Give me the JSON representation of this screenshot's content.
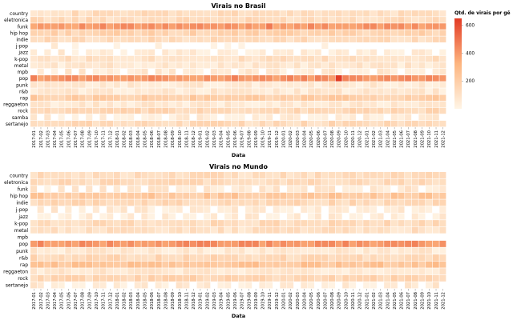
{
  "chart_data": [
    {
      "type": "heatmap",
      "title": "Virais no Brasil",
      "xlabel": "Data",
      "ylabel": "",
      "rows": [
        "country",
        "eletronica",
        "funk",
        "hip hop",
        "indie",
        "j-pop",
        "jazz",
        "k-pop",
        "metal",
        "mpb",
        "pop",
        "punk",
        "r&b",
        "rap",
        "reggaeton",
        "rock",
        "samba",
        "sertanejo"
      ],
      "base_levels": [
        0.18,
        0.2,
        0.62,
        0.26,
        0.2,
        0.04,
        0.06,
        0.16,
        0.1,
        0.08,
        0.64,
        0.08,
        0.09,
        0.3,
        0.09,
        0.22,
        0.06,
        0.2
      ],
      "peaks": [
        {
          "row": "pop",
          "col": "2020-09",
          "level": 1.0
        },
        {
          "row": "funk",
          "col": "2019-11",
          "level": 0.74
        }
      ],
      "empty_cells": [
        {
          "row": "j-pop",
          "cols": [
            "2017-01",
            "2017-02",
            "2017-03",
            "2017-05",
            "2017-06",
            "2017-08",
            "2017-09",
            "2017-10",
            "2017-11",
            "2017-12",
            "2018-02",
            "2018-03",
            "2018-04",
            "2018-05",
            "2018-06",
            "2018-08",
            "2018-09",
            "2018-10",
            "2018-11",
            "2018-12",
            "2019-01",
            "2019-02",
            "2019-04",
            "2019-06",
            "2019-08",
            "2019-09",
            "2019-10",
            "2019-11",
            "2019-12",
            "2020-01",
            "2020-02",
            "2020-03",
            "2020-04",
            "2020-05",
            "2020-06",
            "2020-08",
            "2020-09",
            "2020-10",
            "2020-11",
            "2020-12",
            "2021-01",
            "2021-02",
            "2021-03",
            "2021-04",
            "2021-05",
            "2021-06",
            "2021-07",
            "2021-08",
            "2021-09",
            "2021-10",
            "2021-11",
            "2021-12"
          ]
        },
        {
          "row": "jazz",
          "cols": [
            "2017-02",
            "2017-04",
            "2017-06",
            "2017-08",
            "2018-01",
            "2018-03",
            "2018-07",
            "2019-03",
            "2019-07",
            "2019-11",
            "2020-03",
            "2020-07",
            "2020-11",
            "2021-03",
            "2021-07",
            "2021-11"
          ]
        },
        {
          "row": "mpb",
          "cols": [
            "2017-01",
            "2017-03",
            "2017-05",
            "2017-07",
            "2017-09",
            "2018-02",
            "2018-06",
            "2018-10",
            "2019-02",
            "2019-06",
            "2019-10",
            "2020-02",
            "2020-06",
            "2020-10",
            "2021-02",
            "2021-06",
            "2021-10"
          ]
        },
        {
          "row": "samba",
          "cols": [
            "2017-02",
            "2017-04",
            "2017-06",
            "2017-08",
            "2017-10",
            "2017-12",
            "2018-04",
            "2018-08",
            "2018-12",
            "2019-04",
            "2019-08",
            "2019-12",
            "2020-04",
            "2020-08",
            "2020-12",
            "2021-04",
            "2021-08",
            "2021-12"
          ]
        }
      ],
      "color_scale": {
        "min": 0,
        "max": 650,
        "low_color": "#fff5e6",
        "mid_color": "#fdb57f",
        "high_color": "#e23b24"
      }
    },
    {
      "type": "heatmap",
      "title": "Virais no Mundo",
      "xlabel": "Data",
      "ylabel": "",
      "rows": [
        "country",
        "eletronica",
        "funk",
        "hip hop",
        "indie",
        "j-pop",
        "jazz",
        "k-pop",
        "metal",
        "mpb",
        "pop",
        "punk",
        "r&b",
        "rap",
        "reggaeton",
        "rock",
        "sertanejo"
      ],
      "base_levels": [
        0.18,
        0.2,
        0.1,
        0.34,
        0.22,
        0.08,
        0.06,
        0.2,
        0.16,
        0.02,
        0.64,
        0.1,
        0.22,
        0.38,
        0.1,
        0.24,
        0.08
      ],
      "peaks": [],
      "empty_cells": [
        {
          "row": "funk",
          "cols": [
            "2017-02",
            "2017-04",
            "2017-06",
            "2017-08",
            "2017-10",
            "2017-12",
            "2018-02",
            "2018-05",
            "2018-09",
            "2019-01",
            "2019-05",
            "2019-09",
            "2020-01",
            "2020-05",
            "2020-09",
            "2021-01",
            "2021-05",
            "2021-09"
          ]
        },
        {
          "row": "j-pop",
          "cols": [
            "2017-01",
            "2017-03",
            "2017-05",
            "2017-07",
            "2017-09",
            "2017-11",
            "2018-03",
            "2018-07",
            "2018-11",
            "2019-03",
            "2019-07",
            "2019-11",
            "2020-03",
            "2020-07",
            "2020-11",
            "2021-03",
            "2021-07",
            "2021-11"
          ]
        },
        {
          "row": "jazz",
          "cols": [
            "2017-01",
            "2017-04",
            "2017-07",
            "2017-10",
            "2018-01",
            "2018-04",
            "2018-07",
            "2018-10",
            "2019-01",
            "2019-04",
            "2019-07",
            "2019-10",
            "2020-01",
            "2020-04",
            "2020-07",
            "2020-10",
            "2021-01",
            "2021-04",
            "2021-07",
            "2021-10"
          ]
        },
        {
          "row": "mpb",
          "cols": [
            "2017-01",
            "2017-02",
            "2017-03",
            "2017-04",
            "2017-05",
            "2017-06",
            "2017-07",
            "2017-08",
            "2017-09",
            "2017-10",
            "2017-11",
            "2017-12",
            "2018-01",
            "2018-02",
            "2018-03",
            "2018-04",
            "2018-05",
            "2018-06",
            "2018-07",
            "2018-08",
            "2018-09",
            "2018-10",
            "2018-11",
            "2018-12",
            "2019-01",
            "2019-02",
            "2019-03",
            "2019-04",
            "2019-05",
            "2019-06",
            "2019-07",
            "2019-08",
            "2019-09",
            "2019-10",
            "2019-11",
            "2019-12",
            "2020-01",
            "2020-02",
            "2020-03",
            "2020-04",
            "2020-05",
            "2020-06",
            "2020-07",
            "2020-08",
            "2020-09",
            "2020-10",
            "2020-11",
            "2020-12",
            "2021-01",
            "2021-02",
            "2021-03",
            "2021-04",
            "2021-05",
            "2021-06",
            "2021-07",
            "2021-08",
            "2021-09",
            "2021-10",
            "2021-11",
            "2021-12"
          ]
        },
        {
          "row": "sertanejo",
          "cols": [
            "2017-03",
            "2017-06",
            "2017-09",
            "2017-12",
            "2018-03",
            "2018-06",
            "2018-09",
            "2018-12",
            "2019-03",
            "2019-06",
            "2019-09",
            "2019-12",
            "2020-03",
            "2020-06",
            "2020-09",
            "2020-12",
            "2021-03",
            "2021-06",
            "2021-09",
            "2021-12"
          ]
        }
      ],
      "color_scale": {
        "min": 0,
        "max": 650,
        "low_color": "#fff5e6",
        "mid_color": "#fdb57f",
        "high_color": "#e23b24"
      }
    }
  ],
  "legend": {
    "title": "Qtd. de virais por gê",
    "ticks": [
      600,
      400,
      200
    ],
    "range": [
      0,
      650
    ],
    "placement": "right"
  },
  "x_categories": [
    "2017-01",
    "2017-02",
    "2017-03",
    "2017-04",
    "2017-05",
    "2017-06",
    "2017-07",
    "2017-08",
    "2017-09",
    "2017-10",
    "2017-11",
    "2017-12",
    "2018-01",
    "2018-02",
    "2018-03",
    "2018-04",
    "2018-05",
    "2018-06",
    "2018-07",
    "2018-08",
    "2018-09",
    "2018-10",
    "2018-11",
    "2018-12",
    "2019-01",
    "2019-02",
    "2019-03",
    "2019-04",
    "2019-05",
    "2019-06",
    "2019-07",
    "2019-08",
    "2019-09",
    "2019-10",
    "2019-11",
    "2019-12",
    "2020-01",
    "2020-02",
    "2020-03",
    "2020-04",
    "2020-05",
    "2020-06",
    "2020-07",
    "2020-08",
    "2020-09",
    "2020-10",
    "2020-11",
    "2020-12",
    "2021-01",
    "2021-02",
    "2021-03",
    "2021-04",
    "2021-05",
    "2021-06",
    "2021-07",
    "2021-08",
    "2021-09",
    "2021-10",
    "2021-11",
    "2021-12"
  ]
}
